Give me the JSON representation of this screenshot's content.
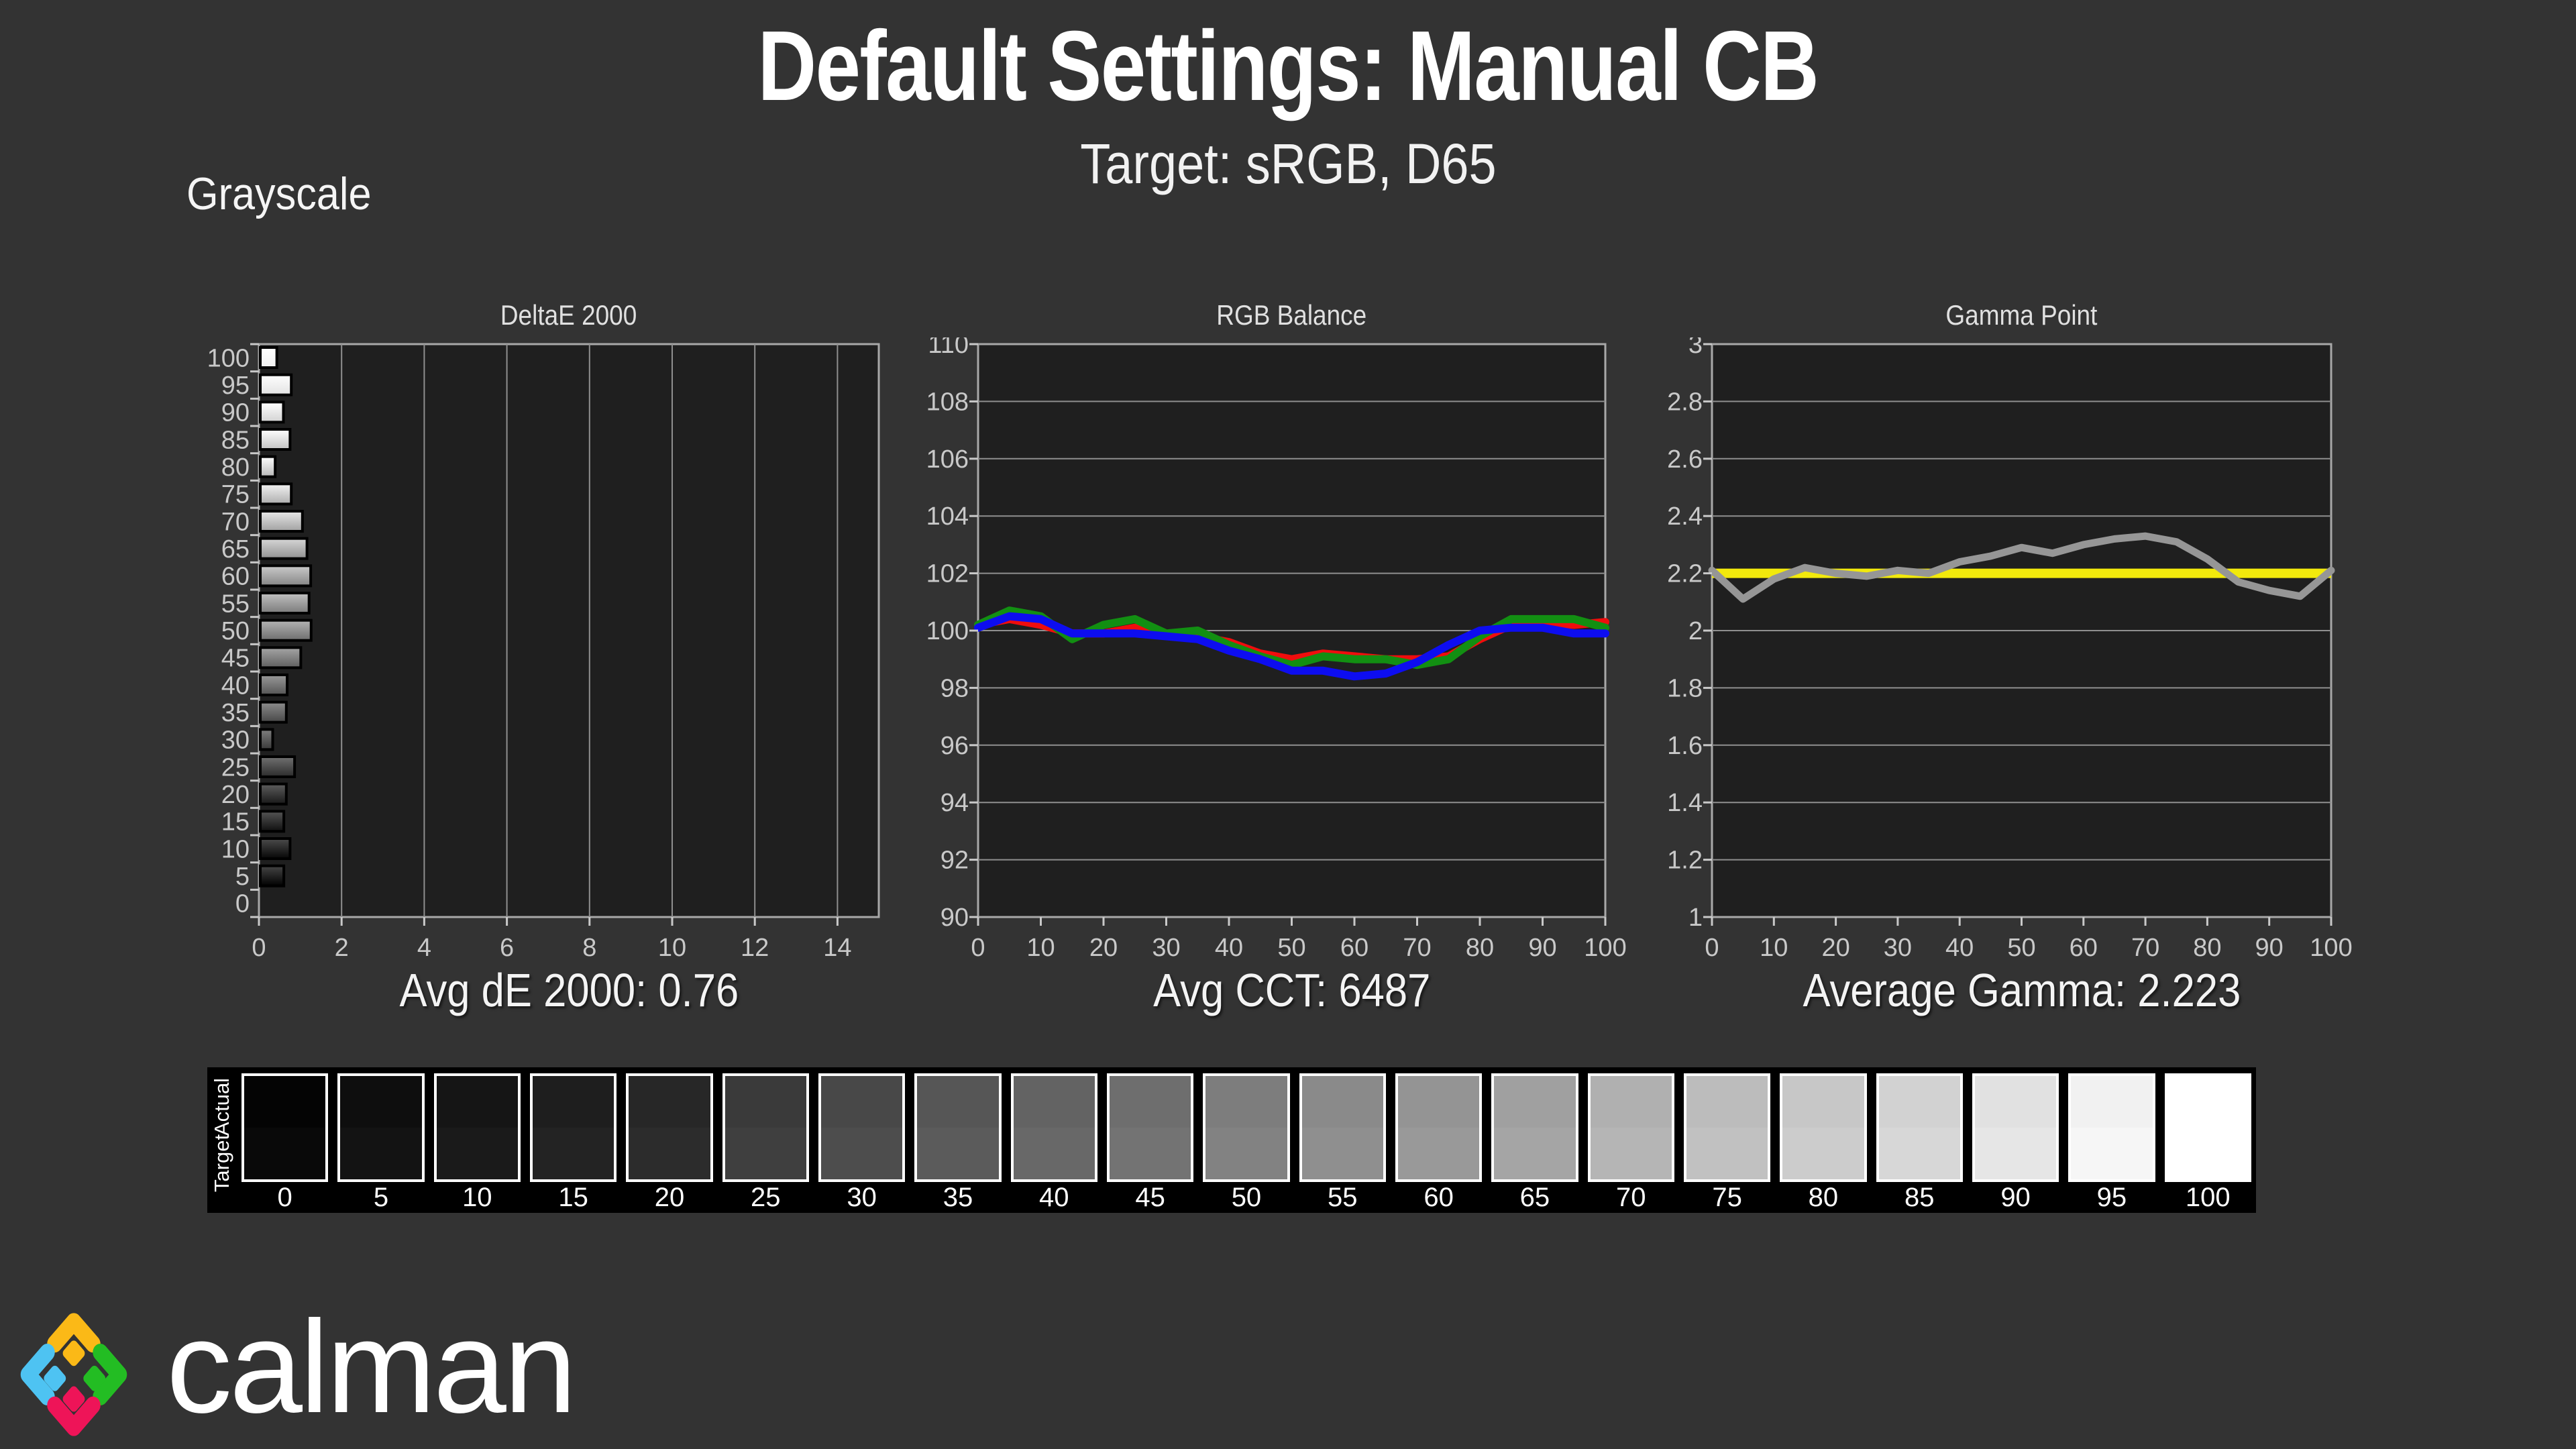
{
  "page": {
    "title": "Default Settings: Manual CB",
    "subtitle": "Target: sRGB, D65",
    "section_label": "Grayscale",
    "background_color": "#333333",
    "plot_background_color": "#1f1f1f",
    "grid_color": "#8f8f8f",
    "axis_text_color": "#c9c9c9"
  },
  "stats": {
    "avg_de": "Avg dE 2000: 0.76",
    "avg_cct": "Avg CCT: 6487",
    "avg_gamma": "Average Gamma: 2.223"
  },
  "chart_data": [
    {
      "id": "deltae",
      "type": "bar",
      "orientation": "horizontal",
      "title": "DeltaE 2000",
      "categories": [
        100,
        95,
        90,
        85,
        80,
        75,
        70,
        65,
        60,
        55,
        50,
        45,
        40,
        35,
        30,
        25,
        20,
        15,
        10,
        5,
        0
      ],
      "values": [
        0.4,
        0.75,
        0.56,
        0.72,
        0.36,
        0.75,
        1.02,
        1.13,
        1.22,
        1.18,
        1.23,
        0.98,
        0.65,
        0.63,
        0.3,
        0.83,
        0.63,
        0.57,
        0.72,
        0.57,
        0.0
      ],
      "xlim": [
        0,
        15
      ],
      "x_ticks": [
        0,
        2,
        4,
        6,
        8,
        10,
        12,
        14
      ],
      "grid": true,
      "bar_border_color": "#000000"
    },
    {
      "id": "rgb-balance",
      "type": "line",
      "title": "RGB Balance",
      "x": [
        0,
        5,
        10,
        15,
        20,
        25,
        30,
        35,
        40,
        45,
        50,
        55,
        60,
        65,
        70,
        75,
        80,
        85,
        90,
        95,
        100
      ],
      "series": [
        {
          "name": "Red",
          "color": "#f00d0d",
          "values": [
            100.2,
            100.4,
            100.2,
            99.9,
            99.9,
            100.1,
            99.9,
            99.8,
            99.6,
            99.2,
            99.0,
            99.2,
            99.1,
            99.0,
            99.0,
            99.1,
            99.7,
            100.2,
            100.3,
            100.2,
            100.3
          ]
        },
        {
          "name": "Green",
          "color": "#128f12",
          "values": [
            100.2,
            100.7,
            100.5,
            99.7,
            100.2,
            100.4,
            99.9,
            100.0,
            99.5,
            99.1,
            98.8,
            99.1,
            99.0,
            99.0,
            98.8,
            99.0,
            99.8,
            100.4,
            100.4,
            100.4,
            100.1
          ]
        },
        {
          "name": "Blue",
          "color": "#0d0df0",
          "values": [
            100.1,
            100.5,
            100.4,
            99.9,
            99.9,
            99.9,
            99.8,
            99.7,
            99.3,
            99.0,
            98.6,
            98.6,
            98.4,
            98.5,
            98.9,
            99.5,
            100.0,
            100.1,
            100.1,
            99.9,
            99.9
          ]
        }
      ],
      "ylim": [
        90,
        110
      ],
      "y_ticks": [
        110,
        108,
        106,
        104,
        102,
        100,
        98,
        96,
        94,
        92,
        90
      ],
      "x_ticks": [
        0,
        10,
        20,
        30,
        40,
        50,
        60,
        70,
        80,
        90,
        100
      ],
      "grid": true
    },
    {
      "id": "gamma-point",
      "type": "line",
      "title": "Gamma Point",
      "x": [
        0,
        5,
        10,
        15,
        20,
        25,
        30,
        35,
        40,
        45,
        50,
        55,
        60,
        65,
        70,
        75,
        80,
        85,
        90,
        95,
        100
      ],
      "series": [
        {
          "name": "Gamma",
          "color": "#969696",
          "values": [
            2.21,
            2.11,
            2.18,
            2.22,
            2.2,
            2.19,
            2.21,
            2.2,
            2.24,
            2.26,
            2.29,
            2.27,
            2.3,
            2.32,
            2.33,
            2.31,
            2.25,
            2.17,
            2.14,
            2.12,
            2.21
          ]
        }
      ],
      "reference_line": {
        "value": 2.2,
        "color": "#f2e90c"
      },
      "ylim": [
        1,
        3
      ],
      "y_ticks": [
        3,
        2.8,
        2.6,
        2.4,
        2.2,
        2,
        1.8,
        1.6,
        1.4,
        1.2,
        1
      ],
      "y_tick_labels": [
        "3",
        "2.8",
        "2.6",
        "2.4",
        "2.2",
        "2",
        "1.8",
        "1.6",
        "1.4",
        "1.2",
        "1"
      ],
      "x_ticks": [
        0,
        10,
        20,
        30,
        40,
        50,
        60,
        70,
        80,
        90,
        100
      ],
      "grid": true
    }
  ],
  "strip": {
    "row_labels": [
      "Actual",
      "Target"
    ],
    "swatches": [
      {
        "level": 0,
        "hex": "#040404"
      },
      {
        "level": 5,
        "hex": "#0e0e0e"
      },
      {
        "level": 10,
        "hex": "#151515"
      },
      {
        "level": 15,
        "hex": "#1e1e1e"
      },
      {
        "level": 20,
        "hex": "#272727"
      },
      {
        "level": 25,
        "hex": "#3a3a3a"
      },
      {
        "level": 30,
        "hex": "#484848"
      },
      {
        "level": 35,
        "hex": "#565656"
      },
      {
        "level": 40,
        "hex": "#636363"
      },
      {
        "level": 45,
        "hex": "#6e6e6e"
      },
      {
        "level": 50,
        "hex": "#7d7d7d"
      },
      {
        "level": 55,
        "hex": "#8a8a8a"
      },
      {
        "level": 60,
        "hex": "#949494"
      },
      {
        "level": 65,
        "hex": "#a0a0a0"
      },
      {
        "level": 70,
        "hex": "#b0b0b0"
      },
      {
        "level": 75,
        "hex": "#bcbcbc"
      },
      {
        "level": 80,
        "hex": "#c7c7c7"
      },
      {
        "level": 85,
        "hex": "#d2d2d2"
      },
      {
        "level": 90,
        "hex": "#e1e1e1"
      },
      {
        "level": 95,
        "hex": "#f1f1f1"
      },
      {
        "level": 100,
        "hex": "#ffffff"
      }
    ]
  },
  "logo": {
    "text": "calman",
    "colors": {
      "yellow": "#fbb917",
      "blue": "#4ec3f2",
      "green": "#23bd23",
      "pink": "#ee1458"
    }
  }
}
